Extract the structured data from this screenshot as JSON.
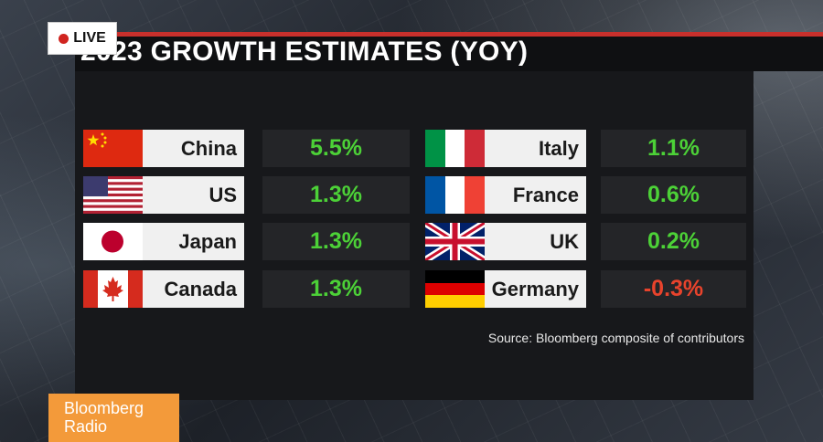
{
  "live_badge": "LIVE",
  "title": "2023 GROWTH ESTIMATES (YOY)",
  "source": "Source: Bloomberg composite of contributors",
  "brand": {
    "line1": "Bloomberg",
    "line2": "Radio"
  },
  "colors": {
    "positive": "#4cd137",
    "negative": "#e8432c",
    "accent": "#c8302c",
    "brand": "#f39a3a"
  },
  "chart_data": {
    "type": "table",
    "title": "2023 GROWTH ESTIMATES (YOY)",
    "unit": "%",
    "rows": [
      {
        "country": "China",
        "value": 5.5,
        "label": "5.5%",
        "flag": "china-flag-icon"
      },
      {
        "country": "US",
        "value": 1.3,
        "label": "1.3%",
        "flag": "us-flag-icon"
      },
      {
        "country": "Japan",
        "value": 1.3,
        "label": "1.3%",
        "flag": "japan-flag-icon"
      },
      {
        "country": "Canada",
        "value": 1.3,
        "label": "1.3%",
        "flag": "canada-flag-icon"
      },
      {
        "country": "Italy",
        "value": 1.1,
        "label": "1.1%",
        "flag": "italy-flag-icon"
      },
      {
        "country": "France",
        "value": 0.6,
        "label": "0.6%",
        "flag": "france-flag-icon"
      },
      {
        "country": "UK",
        "value": 0.2,
        "label": "0.2%",
        "flag": "uk-flag-icon"
      },
      {
        "country": "Germany",
        "value": -0.3,
        "label": "-0.3%",
        "flag": "germany-flag-icon"
      }
    ]
  }
}
